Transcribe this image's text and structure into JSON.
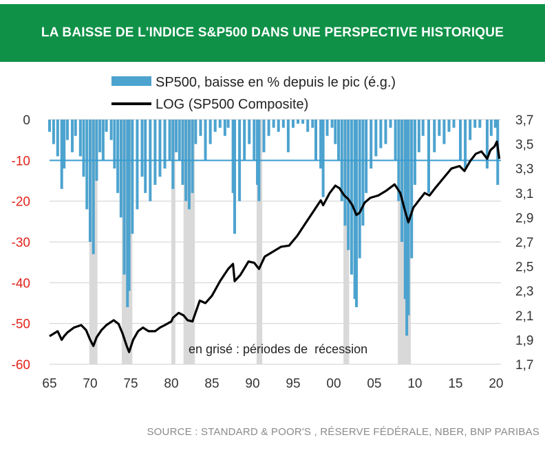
{
  "header": {
    "title": "LA BAISSE DE L'INDICE S&P500 DANS UNE PERSPECTIVE HISTORIQUE"
  },
  "source": "SOURCE : STANDARD & POOR'S , RÉSERVE FÉDÉRALE, NBER, BNP PARIBAS",
  "chart_data": {
    "type": "bar",
    "title": "LA BAISSE DE L'INDICE S&P500 DANS UNE PERSPECTIVE HISTORIQUE",
    "annotation": "en grisé : périodes de  récession",
    "x_range": [
      1965,
      2020.6
    ],
    "x_ticks": [
      65,
      70,
      75,
      80,
      85,
      90,
      95,
      "00",
      "05",
      10,
      15,
      20
    ],
    "left_axis": {
      "range": [
        -60,
        0
      ],
      "ticks": [
        "0",
        "-10",
        "-20",
        "-30",
        "-40",
        "-50",
        "-60"
      ]
    },
    "right_axis": {
      "range": [
        1.7,
        3.7
      ],
      "ticks": [
        "3,7",
        "3,5",
        "3,3",
        "3,1",
        "2,9",
        "2,7",
        "2,5",
        "2,3",
        "2,1",
        "1,9",
        "1,7"
      ]
    },
    "reference_line": {
      "value": -10,
      "axis": "left"
    },
    "grid": "horizontal",
    "legend": {
      "position": "top-center"
    },
    "colors": {
      "bars": "#4da3cf",
      "line": "#000000",
      "recession": "#d9d9d9",
      "reference": "#3a9bcf",
      "left_ticks": "#e2231a"
    },
    "series": [
      {
        "name": "SP500, baisse en % depuis le pic (é.g.)",
        "kind": "bar",
        "axis": "left",
        "x": [
          1965,
          1965.5,
          1966,
          1966.5,
          1966.8,
          1967.2,
          1967.8,
          1968.2,
          1968.8,
          1969.2,
          1969.6,
          1970,
          1970.4,
          1970.8,
          1971.2,
          1971.6,
          1972,
          1972.6,
          1973,
          1973.4,
          1973.8,
          1974.2,
          1974.6,
          1974.8,
          1975.2,
          1975.8,
          1976.4,
          1976.8,
          1977.4,
          1978,
          1978.6,
          1979.2,
          1979.8,
          1980.2,
          1980.6,
          1981,
          1981.4,
          1981.8,
          1982.2,
          1982.6,
          1983,
          1983.6,
          1984.2,
          1984.8,
          1985.4,
          1986,
          1986.6,
          1987,
          1987.6,
          1987.8,
          1988.4,
          1989,
          1989.6,
          1990.2,
          1990.6,
          1990.8,
          1991.4,
          1992,
          1992.6,
          1993.2,
          1993.8,
          1994.4,
          1995,
          1995.6,
          1996.2,
          1996.8,
          1997.4,
          1997.8,
          1998.4,
          1998.7,
          1999.2,
          1999.8,
          2000.2,
          2000.6,
          2001,
          2001.4,
          2001.8,
          2002.2,
          2002.6,
          2002.8,
          2003.2,
          2003.6,
          2004,
          2004.6,
          2005.2,
          2005.8,
          2006.4,
          2007,
          2007.6,
          2008,
          2008.4,
          2008.8,
          2009,
          2009.2,
          2009.6,
          2010,
          2010.5,
          2011,
          2011.7,
          2012.4,
          2013,
          2013.6,
          2014.2,
          2014.8,
          2015.6,
          2016.2,
          2016.8,
          2017.4,
          2018,
          2018.9,
          2019.4,
          2019.9,
          2020.2
        ],
        "values": [
          -3,
          -6,
          -9,
          -17,
          -12,
          -5,
          -8,
          -4,
          -9,
          -14,
          -22,
          -30,
          -33,
          -15,
          -8,
          -10,
          -3,
          -5,
          -12,
          -18,
          -24,
          -38,
          -46,
          -42,
          -28,
          -22,
          -14,
          -18,
          -20,
          -16,
          -14,
          -12,
          -10,
          -17,
          -8,
          -10,
          -16,
          -20,
          -22,
          -18,
          -6,
          -4,
          -10,
          -6,
          -3,
          -2,
          -4,
          -2,
          -18,
          -28,
          -20,
          -10,
          -6,
          -10,
          -16,
          -20,
          -8,
          -4,
          -2,
          -3,
          -2,
          -8,
          -2,
          -1,
          -1,
          -3,
          -2,
          -10,
          -12,
          -19,
          -4,
          -2,
          -6,
          -10,
          -20,
          -26,
          -32,
          -38,
          -44,
          -46,
          -34,
          -26,
          -18,
          -12,
          -9,
          -7,
          -6,
          -2,
          -10,
          -20,
          -30,
          -44,
          -53,
          -48,
          -34,
          -16,
          -8,
          -4,
          -18,
          -8,
          -4,
          -6,
          -3,
          -2,
          -10,
          -12,
          -5,
          -2,
          -2,
          -12,
          -4,
          -2,
          -16
        ],
        "color": "#4da3cf"
      },
      {
        "name": "LOG (SP500 Composite)",
        "kind": "line",
        "axis": "right",
        "x": [
          1965,
          1965.5,
          1966,
          1966.5,
          1966.8,
          1967.2,
          1968,
          1968.9,
          1969.5,
          1970,
          1970.4,
          1970.8,
          1971.4,
          1972,
          1972.9,
          1973.5,
          1974,
          1974.5,
          1974.8,
          1975.3,
          1975.9,
          1976.5,
          1977.2,
          1978,
          1978.6,
          1979.2,
          1980,
          1980.2,
          1980.9,
          1981.5,
          1982,
          1982.6,
          1983.5,
          1984.2,
          1985,
          1986,
          1987,
          1987.6,
          1987.8,
          1988.5,
          1989.5,
          1990.2,
          1990.8,
          1991.5,
          1992.5,
          1993.5,
          1994.5,
          1995.5,
          1996.5,
          1997.5,
          1998.4,
          1998.7,
          1999.5,
          2000.2,
          2000.7,
          2001.3,
          2001.8,
          2002.3,
          2002.8,
          2003.2,
          2003.8,
          2004.5,
          2005.5,
          2006.5,
          2007.5,
          2008.2,
          2008.8,
          2009.2,
          2009.8,
          2010.5,
          2011.2,
          2011.8,
          2012.5,
          2013.5,
          2014.5,
          2015.5,
          2016.1,
          2016.8,
          2017.5,
          2018.2,
          2018.9,
          2019.3,
          2019.8,
          2020.1,
          2020.4
        ],
        "values": [
          1.93,
          1.95,
          1.97,
          1.9,
          1.93,
          1.96,
          2.0,
          2.02,
          1.98,
          1.9,
          1.85,
          1.92,
          1.98,
          2.02,
          2.06,
          2.03,
          1.95,
          1.85,
          1.8,
          1.9,
          1.97,
          2.0,
          1.97,
          1.97,
          2.0,
          2.02,
          2.05,
          2.08,
          2.12,
          2.1,
          2.06,
          2.05,
          2.22,
          2.2,
          2.26,
          2.38,
          2.48,
          2.52,
          2.38,
          2.43,
          2.54,
          2.53,
          2.48,
          2.58,
          2.62,
          2.66,
          2.67,
          2.75,
          2.85,
          2.95,
          3.04,
          3.0,
          3.1,
          3.16,
          3.14,
          3.08,
          3.05,
          3.0,
          2.92,
          2.94,
          3.02,
          3.06,
          3.08,
          3.12,
          3.17,
          3.1,
          2.95,
          2.86,
          2.98,
          3.04,
          3.1,
          3.08,
          3.14,
          3.22,
          3.3,
          3.32,
          3.28,
          3.36,
          3.42,
          3.44,
          3.38,
          3.45,
          3.48,
          3.52,
          3.38
        ],
        "color": "#000000"
      }
    ],
    "recession_periods": [
      [
        1969.9,
        1970.9
      ],
      [
        1973.9,
        1975.2
      ],
      [
        1980.0,
        1980.5
      ],
      [
        1981.5,
        1982.9
      ],
      [
        1990.5,
        1991.2
      ],
      [
        2001.2,
        2001.9
      ],
      [
        2007.9,
        2009.5
      ]
    ]
  }
}
